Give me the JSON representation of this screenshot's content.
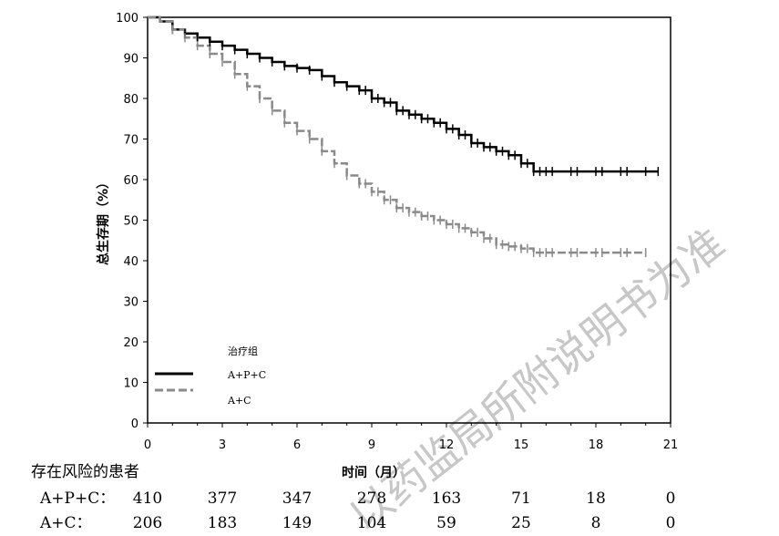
{
  "chart_data": {
    "type": "line",
    "title": "",
    "xlabel": "时间（月）",
    "ylabel": "总生存期（%）",
    "xlim": [
      0,
      21
    ],
    "ylim": [
      0,
      100
    ],
    "x_ticks": [
      0,
      3,
      6,
      9,
      12,
      15,
      18,
      21
    ],
    "y_ticks": [
      0,
      10,
      20,
      30,
      40,
      50,
      60,
      70,
      80,
      90,
      100
    ],
    "grid": false,
    "legend_title": "治疗组",
    "legend_position": "lower-left",
    "series": [
      {
        "name": "A+P+C",
        "color": "#000000",
        "style": "solid",
        "x": [
          0,
          0.5,
          1,
          1.5,
          2,
          2.5,
          3,
          3.5,
          4,
          4.5,
          5,
          5.5,
          6,
          6.5,
          7,
          7.5,
          8,
          8.5,
          9,
          9.5,
          10,
          10.5,
          11,
          11.5,
          12,
          12.5,
          13,
          13.5,
          14,
          14.5,
          15,
          15.5,
          16,
          17,
          18,
          19,
          20,
          20.5
        ],
        "y": [
          100,
          99,
          97,
          96,
          95,
          94,
          93,
          92,
          91,
          90,
          89,
          88,
          87.5,
          87,
          85.5,
          84,
          83,
          82,
          80,
          79,
          77,
          76,
          75,
          74,
          72.5,
          71,
          69,
          68,
          67,
          66,
          64,
          62,
          62,
          62,
          62,
          62,
          62,
          62
        ]
      },
      {
        "name": "A+C",
        "color": "#8a8a8a",
        "style": "dashed",
        "x": [
          0,
          0.5,
          1,
          1.5,
          2,
          2.5,
          3,
          3.5,
          4,
          4.5,
          5,
          5.5,
          6,
          6.5,
          7,
          7.5,
          8,
          8.5,
          9,
          9.5,
          10,
          10.5,
          11,
          11.5,
          12,
          12.5,
          13,
          13.5,
          14,
          14.5,
          15,
          15.5,
          16,
          17,
          18,
          19,
          20
        ],
        "y": [
          100,
          99,
          97,
          95,
          93,
          91,
          89,
          86,
          83,
          80,
          77,
          74,
          72,
          70,
          67,
          64,
          61,
          59,
          57,
          55,
          53,
          52,
          51,
          50,
          49,
          48,
          47,
          45.5,
          44,
          43.5,
          43,
          42,
          42,
          42,
          42,
          42,
          42
        ]
      }
    ],
    "risk_table": {
      "title": "存在风险的患者",
      "rows": [
        {
          "label": "A+P+C：",
          "values": [
            410,
            377,
            347,
            278,
            163,
            71,
            18,
            0
          ]
        },
        {
          "label": "A+C：",
          "values": [
            206,
            183,
            149,
            104,
            59,
            25,
            8,
            0
          ]
        }
      ]
    }
  },
  "watermark": "以药监局所附说明书为准"
}
